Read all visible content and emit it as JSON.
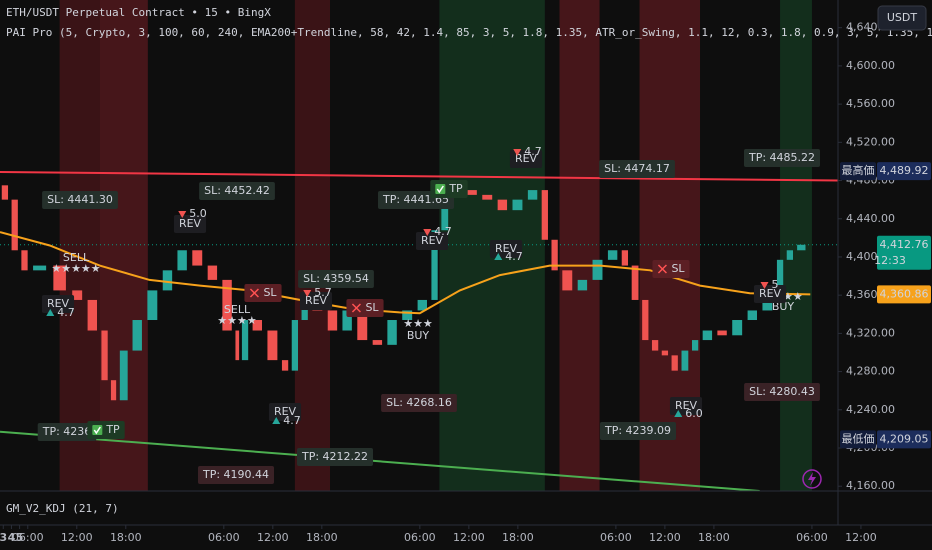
{
  "chart_data": {
    "type": "candlestick",
    "title": "ETH/USDT Perpetual Contract • 15 • BingX",
    "subtitle": "PAI Pro (5, Crypto, 3, 100, 60, 240, EMA200+Trendline, 58, 42, 1.4, 85, 3, 5, 1.8, 1.35, ATR_or_Swing, 1.1, 12, 0.3, 1.8, 0.9, 3, 5, 1.35, 1.25, 0.",
    "indicator_label": "GM_V2_KDJ (21, 7)",
    "currency_button": "USDT",
    "x": [
      2.6,
      3.8,
      5.0,
      6.2,
      8.7,
      11.1,
      13.0,
      14.8,
      16.0,
      17.0,
      18.5,
      20.3,
      22.2,
      24.0,
      25.8,
      27.7,
      29.5,
      31.3,
      32.0,
      33.2,
      35.0,
      36.9,
      38.1,
      39.3,
      40.5,
      42.4,
      44.2,
      46.0,
      47.9,
      49.7,
      51.5,
      53.4,
      55.2,
      56.4,
      57.7,
      59.5,
      61.3,
      63.2,
      65.0,
      66.9,
      68.7,
      69.9,
      71.1,
      73.0,
      74.8,
      76.7,
      78.5,
      79.7,
      81.0,
      82.2,
      83.4,
      84.6,
      85.8,
      87.1,
      88.3,
      90.1,
      91.9,
      93.8,
      95.6,
      97.5,
      98.7,
      99.9,
      101.5
    ],
    "series": [
      {
        "up_color": "#26a69a",
        "down_color": "#ef5350",
        "values": [
          4475,
          4460,
          4407,
          4386,
          4391,
          4365,
          4355,
          4323,
          4271,
          4250,
          4302,
          4334,
          4365,
          4386,
          4407,
          4391,
          4376,
          4323,
          4292,
          4334,
          4323,
          4292,
          4281,
          4334,
          4355,
          4344,
          4323,
          4344,
          4313,
          4308,
          4334,
          4344,
          4355,
          4428,
          4465,
          4470,
          4465,
          4460,
          4449,
          4460,
          4470,
          4418,
          4386,
          4365,
          4376,
          4397,
          4407,
          4391,
          4355,
          4313,
          4302,
          4297,
          4281,
          4302,
          4313,
          4323,
          4318,
          4334,
          4344,
          4365,
          4397,
          4407,
          4412.76
        ]
      }
    ],
    "ema": {
      "color": "#f7a21b",
      "x": [
        2.6,
        8.7,
        14.8,
        20.9,
        27.1,
        33.2,
        39.3,
        45.4,
        51.5,
        54.0,
        58.9,
        63.8,
        69.9,
        76.1,
        82.2,
        88.3,
        94.4,
        101.8
      ],
      "values": [
        4426,
        4412,
        4391,
        4376,
        4370,
        4365,
        4355,
        4346,
        4342,
        4341,
        4365,
        4381,
        4391,
        4391,
        4386,
        4370,
        4362,
        4360.86
      ]
    },
    "trendlines": [
      {
        "color": "#f23645",
        "x": [
          2.6,
          105.2
        ],
        "values": [
          4489,
          4480
        ]
      },
      {
        "color": "#4caf50",
        "x": [
          2.6,
          95.6
        ],
        "values": [
          4217,
          4155
        ]
      }
    ],
    "zones": [
      {
        "from": 9.9,
        "to": 14.8,
        "color": "#4a1519"
      },
      {
        "from": 14.8,
        "to": 20.7,
        "color": "#5a1a1f"
      },
      {
        "from": 38.7,
        "to": 43.0,
        "color": "#4a1519"
      },
      {
        "from": 56.4,
        "to": 69.3,
        "color": "#163a22"
      },
      {
        "from": 71.1,
        "to": 76.0,
        "color": "#5a1a1f"
      },
      {
        "from": 80.9,
        "to": 88.3,
        "color": "#5a1a1f"
      },
      {
        "from": 98.1,
        "to": 102.0,
        "color": "#163a22"
      }
    ],
    "xlim": [
      2.6,
      116.7
    ],
    "ylim": [
      4155,
      4669
    ],
    "xticks": [
      {
        "value": 6,
        "label": "06:00"
      },
      {
        "value": 12,
        "label": "12:00"
      },
      {
        "value": 18,
        "label": "18:00"
      },
      2,
      {
        "value": 30,
        "label": "06:00"
      },
      {
        "value": 36,
        "label": "12:00"
      },
      {
        "value": 42,
        "label": "18:00"
      },
      3,
      {
        "value": 54,
        "label": "06:00"
      },
      {
        "value": 60,
        "label": "12:00"
      },
      {
        "value": 66,
        "label": "18:00"
      },
      4,
      {
        "value": 78,
        "label": "06:00"
      },
      {
        "value": 84,
        "label": "12:00"
      },
      {
        "value": 90,
        "label": "18:00"
      },
      5,
      {
        "value": 102,
        "label": "06:00"
      },
      {
        "value": 108,
        "label": "12:00"
      }
    ],
    "yticks": [
      {
        "value": 4160,
        "label": "4,160.00"
      },
      {
        "value": 4200,
        "label": "4,200.00"
      },
      {
        "value": 4240,
        "label": "4,240.00"
      },
      {
        "value": 4280,
        "label": "4,280.00"
      },
      {
        "value": 4320,
        "label": "4,320.00"
      },
      {
        "value": 4360,
        "label": "4,360.00"
      },
      {
        "value": 4400,
        "label": "4,400.00"
      },
      {
        "value": 4440,
        "label": "4,440.00"
      },
      {
        "value": 4480,
        "label": "4,480.00"
      },
      {
        "value": 4520,
        "label": "4,520.00"
      },
      {
        "value": 4560,
        "label": "4,560.00"
      },
      {
        "value": 4600,
        "label": "4,600.00"
      },
      {
        "value": 4640,
        "label": "4,640.00"
      }
    ],
    "price_markers": [
      {
        "label": "最高価",
        "value": 4489.92,
        "value_label": "4,489.92",
        "color": "#1c2d5c"
      },
      {
        "label": "最低価",
        "value": 4209.05,
        "value_label": "4,209.05",
        "color": "#1c2d5c"
      }
    ],
    "last_price": {
      "value": 4412.76,
      "value_label": "4,412.76",
      "countdown": "12:33",
      "color": "#089981"
    },
    "ema_last": {
      "value": 4360.86,
      "value_label": "4,360.86",
      "color": "#f7a21b"
    },
    "annotations": [
      "SL: 4441.30",
      "SL: 4452.42",
      "TP: 4441.65",
      "SL: 4474.17",
      "TP: 4485.22",
      "SL: 4359.54",
      "SL: 4268.16",
      "SL: 4280.43",
      "TP: 4236",
      "TP: 4190.44",
      "TP: 4212.22",
      "TP: 4239.09",
      "SELL",
      "★★★★★",
      "SELL",
      "★★★★",
      "★★★",
      "BUY",
      "★★★★",
      "BUY",
      "REV",
      "REV",
      "REV",
      "REV",
      "REV",
      "REV",
      "REV",
      "REV",
      "REV",
      "4.7",
      "5.0",
      "5.7",
      "4.7",
      "4.7",
      "4.7",
      "4.7",
      "6.0",
      "5",
      "SL",
      "SL",
      "SL",
      "TP",
      "TP"
    ]
  }
}
